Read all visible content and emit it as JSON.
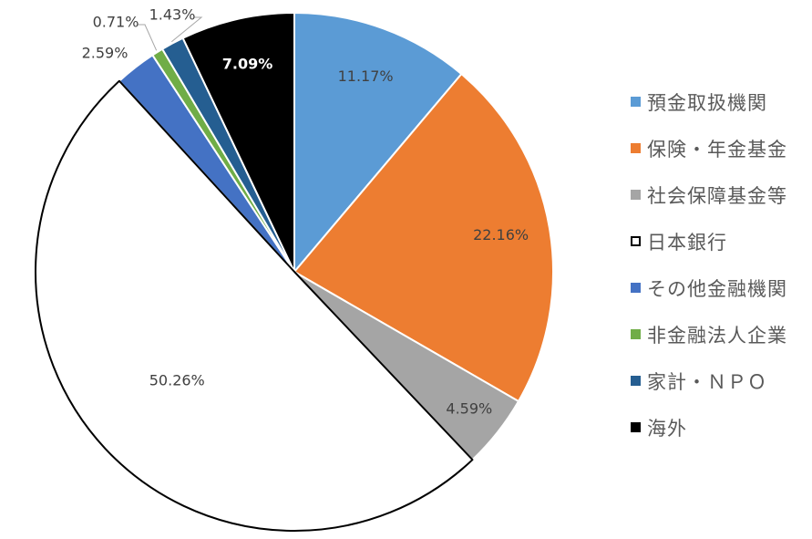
{
  "chart_data": {
    "type": "pie",
    "title": "",
    "start_angle_deg": 0,
    "direction": "clockwise",
    "legend_position": "right",
    "slices": [
      {
        "label": "預金取扱機関",
        "value": 11.17,
        "display": "11.17%",
        "color": "#5b9bd5",
        "stroke": "#ffffff",
        "label_color": "#404040"
      },
      {
        "label": "保険・年金基金",
        "value": 22.16,
        "display": "22.16%",
        "color": "#ed7d31",
        "stroke": "#ffffff",
        "label_color": "#404040"
      },
      {
        "label": "社会保障基金等",
        "value": 4.59,
        "display": "4.59%",
        "color": "#a5a5a5",
        "stroke": "#ffffff",
        "label_color": "#404040"
      },
      {
        "label": "日本銀行",
        "value": 50.26,
        "display": "50.26%",
        "color": "#ffffff",
        "stroke": "#000000",
        "label_color": "#404040"
      },
      {
        "label": "その他金融機関",
        "value": 2.59,
        "display": "2.59%",
        "color": "#4472c4",
        "stroke": "#ffffff",
        "label_color": "#404040"
      },
      {
        "label": "非金融法人企業",
        "value": 0.71,
        "display": "0.71%",
        "color": "#70ad47",
        "stroke": "#ffffff",
        "label_color": "#404040"
      },
      {
        "label": "家計・ＮＰＯ",
        "value": 1.43,
        "display": "1.43%",
        "color": "#255e91",
        "stroke": "#ffffff",
        "label_color": "#404040"
      },
      {
        "label": "海外",
        "value": 7.09,
        "display": "7.09%",
        "color": "#000000",
        "stroke": "#ffffff",
        "label_color": "#ffffff"
      }
    ]
  }
}
